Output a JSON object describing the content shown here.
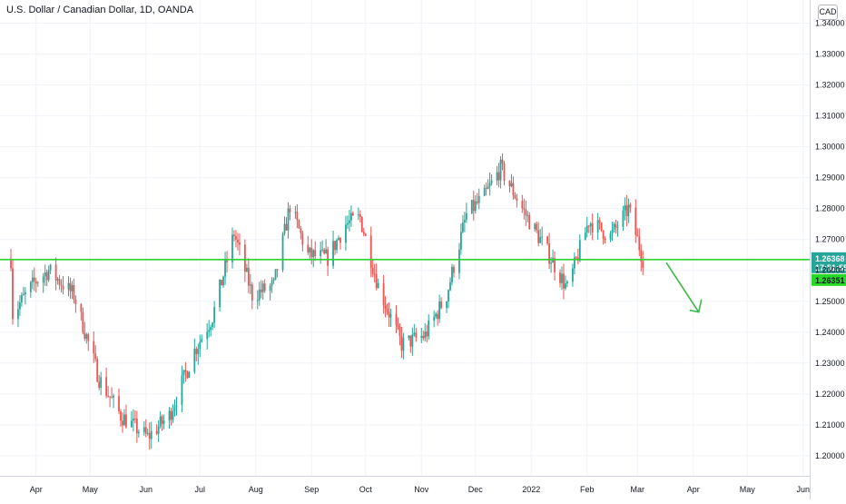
{
  "chart_title": "U.S. Dollar / Canadian Dollar, 1D, OANDA",
  "currency_button": "CAD",
  "colors": {
    "up": "#26a69a",
    "down": "#ef5350",
    "horizontal_line": "#2ed12e",
    "arrow": "#3eb84a",
    "price_badge": "#26a69a",
    "line_badge": "#27d827"
  },
  "price_badge": {
    "price": "1.26368",
    "countdown": "17:51:55"
  },
  "line_badge": {
    "price": "1.26351"
  },
  "chart_data": {
    "type": "candlestick",
    "title": "U.S. Dollar / Canadian Dollar, 1D, OANDA",
    "y_ticks": [
      "1.34000",
      "1.33000",
      "1.32000",
      "1.31000",
      "1.30000",
      "1.29000",
      "1.28000",
      "1.27000",
      "1.26000",
      "1.25000",
      "1.24000",
      "1.23000",
      "1.22000",
      "1.21000",
      "1.20000"
    ],
    "x_ticks": [
      "Apr",
      "May",
      "Jun",
      "Jul",
      "Aug",
      "Sep",
      "Oct",
      "Nov",
      "Dec",
      "2022",
      "Feb",
      "Mar",
      "Apr",
      "May",
      "Jun"
    ],
    "ylim": [
      1.1935,
      1.3475
    ],
    "horizontal_line": 1.2635,
    "annotation": "down arrow",
    "grid": true,
    "legend": "none",
    "close_path": [
      [
        "2021-03-19",
        1.246
      ],
      [
        "2021-03-31",
        1.256
      ],
      [
        "2021-04-08",
        1.26
      ],
      [
        "2021-04-22",
        1.252
      ],
      [
        "2021-05-06",
        1.225
      ],
      [
        "2021-05-18",
        1.213
      ],
      [
        "2021-06-02",
        1.206
      ],
      [
        "2021-06-14",
        1.213
      ],
      [
        "2021-06-28",
        1.234
      ],
      [
        "2021-07-08",
        1.245
      ],
      [
        "2021-07-20",
        1.272
      ],
      [
        "2021-07-30",
        1.252
      ],
      [
        "2021-08-11",
        1.255
      ],
      [
        "2021-08-20",
        1.281
      ],
      [
        "2021-08-30",
        1.265
      ],
      [
        "2021-09-10",
        1.264
      ],
      [
        "2021-09-20",
        1.275
      ],
      [
        "2021-09-28",
        1.277
      ],
      [
        "2021-10-08",
        1.255
      ],
      [
        "2021-10-21",
        1.236
      ],
      [
        "2021-11-03",
        1.239
      ],
      [
        "2021-11-15",
        1.252
      ],
      [
        "2021-11-26",
        1.278
      ],
      [
        "2021-12-06",
        1.284
      ],
      [
        "2021-12-15",
        1.293
      ],
      [
        "2021-12-28",
        1.279
      ],
      [
        "2022-01-10",
        1.266
      ],
      [
        "2022-01-21",
        1.254
      ],
      [
        "2022-02-02",
        1.276
      ],
      [
        "2022-02-14",
        1.271
      ],
      [
        "2022-02-24",
        1.28
      ],
      [
        "2022-03-04",
        1.2637
      ]
    ]
  }
}
